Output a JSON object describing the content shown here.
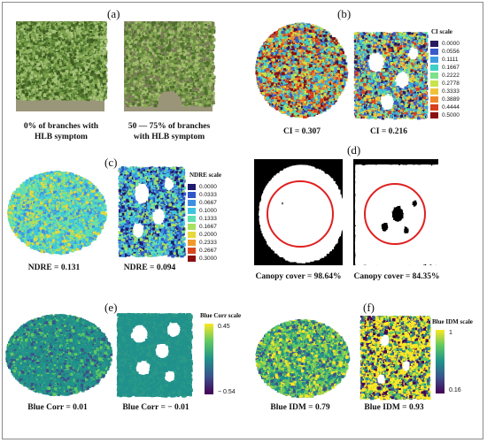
{
  "panels": {
    "a": {
      "letter": "(a)",
      "left_caption_1": "0% of branches with",
      "left_caption_2": "HLB symptom",
      "right_caption_1": "50 — 75% of branches",
      "right_caption_2": "with HLB symptom"
    },
    "b": {
      "letter": "(b)",
      "scale_title": "CI scale",
      "scale": [
        {
          "label": "0.0000",
          "color": "#2a1a5e"
        },
        {
          "label": "0.0556",
          "color": "#3b5bc8"
        },
        {
          "label": "0.1111",
          "color": "#3f9de0"
        },
        {
          "label": "0.1667",
          "color": "#3fd0c8"
        },
        {
          "label": "0.2222",
          "color": "#7fe08a"
        },
        {
          "label": "0.2778",
          "color": "#c8e44a"
        },
        {
          "label": "0.3333",
          "color": "#f0c23a"
        },
        {
          "label": "0.3889",
          "color": "#f0862a"
        },
        {
          "label": "0.4444",
          "color": "#d8401e"
        },
        {
          "label": "0.5000",
          "color": "#8a1010"
        }
      ],
      "left_caption": "CI = 0.307",
      "right_caption": "CI = 0.216"
    },
    "c": {
      "letter": "(c)",
      "scale_title": "NDRE scale",
      "scale": [
        {
          "label": "0.0000",
          "color": "#1e1a6e"
        },
        {
          "label": "0.0333",
          "color": "#2f55c8"
        },
        {
          "label": "0.0667",
          "color": "#3f8fe0"
        },
        {
          "label": "0.1000",
          "color": "#3fc4e0"
        },
        {
          "label": "0.1333",
          "color": "#5fe0b0"
        },
        {
          "label": "0.1667",
          "color": "#a8e060"
        },
        {
          "label": "0.2000",
          "color": "#e8d83a"
        },
        {
          "label": "0.2333",
          "color": "#f09a2a"
        },
        {
          "label": "0.2667",
          "color": "#d84a1e"
        },
        {
          "label": "0.3000",
          "color": "#8a1010"
        }
      ],
      "left_caption": "NDRE = 0.131",
      "right_caption": "NDRE = 0.094"
    },
    "d": {
      "letter": "(d)",
      "left_caption": "Canopy cover = 98.64%",
      "right_caption": "Canopy cover = 84.35%"
    },
    "e": {
      "letter": "(e)",
      "scale_title": "Blue Corr scale",
      "scale_max": "0.45",
      "scale_min": "− 0.54",
      "left_caption": "Blue Corr = 0.01",
      "right_caption": "Blue Corr = − 0.01"
    },
    "f": {
      "letter": "(f)",
      "scale_title": "Blue IDM scale",
      "scale_max": "1",
      "scale_min": "0.16",
      "left_caption": "Blue IDM = 0.79",
      "right_caption": "Blue IDM = 0.93"
    }
  },
  "colors": {
    "red_circle": "#e02020",
    "viridis_top": "#fde725",
    "viridis_mid": "#21918c",
    "viridis_bottom": "#440154"
  }
}
